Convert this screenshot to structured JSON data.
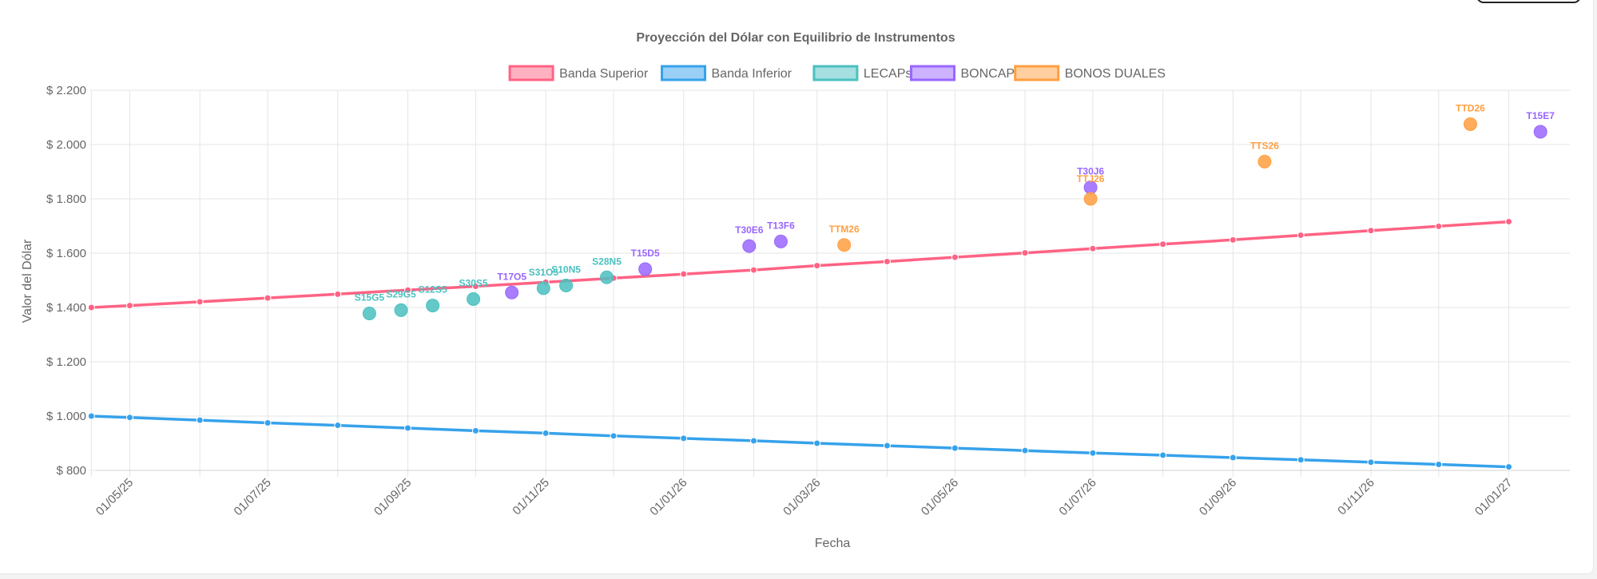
{
  "chart_data": {
    "type": "line",
    "title": "Proyección del Dólar con Equilibrio de Instrumentos",
    "xlabel": "Fecha",
    "ylabel": "Valor del Dólar",
    "grid": true,
    "legend_position": "top",
    "x_range": [
      "2025-04-16",
      "2027-01-28"
    ],
    "ylim": [
      800,
      2200
    ],
    "y_ticks": [
      {
        "value": 800,
        "label": "$ 800"
      },
      {
        "value": 1000,
        "label": "$ 1.000"
      },
      {
        "value": 1200,
        "label": "$ 1.200"
      },
      {
        "value": 1400,
        "label": "$ 1.400"
      },
      {
        "value": 1600,
        "label": "$ 1.600"
      },
      {
        "value": 1800,
        "label": "$ 1.800"
      },
      {
        "value": 2000,
        "label": "$ 2.000"
      },
      {
        "value": 2200,
        "label": "$ 2.200"
      }
    ],
    "x_ticks": [
      {
        "date": "2025-05-01",
        "label": "01/05/25"
      },
      {
        "date": "2025-07-01",
        "label": "01/07/25"
      },
      {
        "date": "2025-09-01",
        "label": "01/09/25"
      },
      {
        "date": "2025-11-01",
        "label": "01/11/25"
      },
      {
        "date": "2026-01-01",
        "label": "01/01/26"
      },
      {
        "date": "2026-03-01",
        "label": "01/03/26"
      },
      {
        "date": "2026-05-01",
        "label": "01/05/26"
      },
      {
        "date": "2026-07-01",
        "label": "01/07/26"
      },
      {
        "date": "2026-09-01",
        "label": "01/09/26"
      },
      {
        "date": "2026-11-01",
        "label": "01/11/26"
      },
      {
        "date": "2027-01-01",
        "label": "01/01/27"
      }
    ],
    "x_grid_dates": [
      "2025-04-14",
      "2025-05-01",
      "2025-06-01",
      "2025-07-01",
      "2025-08-01",
      "2025-09-01",
      "2025-10-01",
      "2025-11-01",
      "2025-12-01",
      "2026-01-01",
      "2026-02-01",
      "2026-03-01",
      "2026-04-01",
      "2026-05-01",
      "2026-06-01",
      "2026-07-01",
      "2026-08-01",
      "2026-09-01",
      "2026-10-01",
      "2026-11-01",
      "2026-12-01",
      "2027-01-01"
    ],
    "line_series": [
      {
        "name": "Banda Superior",
        "color": "#ff6384",
        "fill": "#ffb1c1",
        "points": [
          {
            "x": "2025-04-14",
            "y": 1400
          },
          {
            "x": "2025-05-01",
            "y": 1407
          },
          {
            "x": "2025-06-01",
            "y": 1421
          },
          {
            "x": "2025-07-01",
            "y": 1435
          },
          {
            "x": "2025-08-01",
            "y": 1449
          },
          {
            "x": "2025-09-01",
            "y": 1464
          },
          {
            "x": "2025-10-01",
            "y": 1478
          },
          {
            "x": "2025-11-01",
            "y": 1493
          },
          {
            "x": "2025-12-01",
            "y": 1508
          },
          {
            "x": "2026-01-01",
            "y": 1523
          },
          {
            "x": "2026-02-01",
            "y": 1538
          },
          {
            "x": "2026-03-01",
            "y": 1554
          },
          {
            "x": "2026-04-01",
            "y": 1569
          },
          {
            "x": "2026-05-01",
            "y": 1585
          },
          {
            "x": "2026-06-01",
            "y": 1601
          },
          {
            "x": "2026-07-01",
            "y": 1617
          },
          {
            "x": "2026-08-01",
            "y": 1633
          },
          {
            "x": "2026-09-01",
            "y": 1649
          },
          {
            "x": "2026-10-01",
            "y": 1666
          },
          {
            "x": "2026-11-01",
            "y": 1683
          },
          {
            "x": "2026-12-01",
            "y": 1699
          },
          {
            "x": "2027-01-01",
            "y": 1716
          }
        ]
      },
      {
        "name": "Banda Inferior",
        "color": "#36a2eb",
        "fill": "#9ad0f5",
        "points": [
          {
            "x": "2025-04-14",
            "y": 1000
          },
          {
            "x": "2025-05-01",
            "y": 995
          },
          {
            "x": "2025-06-01",
            "y": 985
          },
          {
            "x": "2025-07-01",
            "y": 975
          },
          {
            "x": "2025-08-01",
            "y": 966
          },
          {
            "x": "2025-09-01",
            "y": 956
          },
          {
            "x": "2025-10-01",
            "y": 946
          },
          {
            "x": "2025-11-01",
            "y": 937
          },
          {
            "x": "2025-12-01",
            "y": 927
          },
          {
            "x": "2026-01-01",
            "y": 918
          },
          {
            "x": "2026-02-01",
            "y": 909
          },
          {
            "x": "2026-03-01",
            "y": 900
          },
          {
            "x": "2026-04-01",
            "y": 891
          },
          {
            "x": "2026-05-01",
            "y": 882
          },
          {
            "x": "2026-06-01",
            "y": 873
          },
          {
            "x": "2026-07-01",
            "y": 864
          },
          {
            "x": "2026-08-01",
            "y": 856
          },
          {
            "x": "2026-09-01",
            "y": 847
          },
          {
            "x": "2026-10-01",
            "y": 839
          },
          {
            "x": "2026-11-01",
            "y": 830
          },
          {
            "x": "2026-12-01",
            "y": 822
          },
          {
            "x": "2027-01-01",
            "y": 813
          }
        ]
      }
    ],
    "scatter_series": [
      {
        "name": "LECAPs",
        "color": "#4bc0c0",
        "fill": "#a5dfdf",
        "points": [
          {
            "x": "2025-08-15",
            "y": 1378,
            "label": "S15G5"
          },
          {
            "x": "2025-08-29",
            "y": 1390,
            "label": "S29G5"
          },
          {
            "x": "2025-09-12",
            "y": 1407,
            "label": "S12S5"
          },
          {
            "x": "2025-09-30",
            "y": 1431,
            "label": "S30S5"
          },
          {
            "x": "2025-10-31",
            "y": 1471,
            "label": "S31O5"
          },
          {
            "x": "2025-11-10",
            "y": 1481,
            "label": "S10N5"
          },
          {
            "x": "2025-11-28",
            "y": 1511,
            "label": "S28N5"
          }
        ]
      },
      {
        "name": "BONCAPs",
        "color": "#9966ff",
        "fill": "#ccb2ff",
        "points": [
          {
            "x": "2025-10-17",
            "y": 1455,
            "label": "T17O5"
          },
          {
            "x": "2025-12-15",
            "y": 1541,
            "label": "T15D5"
          },
          {
            "x": "2026-01-30",
            "y": 1626,
            "label": "T30E6"
          },
          {
            "x": "2026-02-13",
            "y": 1643,
            "label": "T13F6"
          },
          {
            "x": "2026-06-30",
            "y": 1842,
            "label": "T30J6"
          },
          {
            "x": "2027-01-15",
            "y": 2047,
            "label": "T15E7"
          }
        ]
      },
      {
        "name": "BONOS DUALES",
        "color": "#ff9f40",
        "fill": "#ffcf9f",
        "points": [
          {
            "x": "2026-03-13",
            "y": 1630,
            "label": "TTM26"
          },
          {
            "x": "2026-06-30",
            "y": 1800,
            "label": "TTJ26"
          },
          {
            "x": "2026-09-15",
            "y": 1937,
            "label": "TTS26"
          },
          {
            "x": "2026-12-15",
            "y": 2075,
            "label": "TTD26"
          }
        ]
      }
    ],
    "legend": [
      {
        "name": "Banda Superior",
        "color": "#ff6384",
        "fill": "#ffb1c1"
      },
      {
        "name": "Banda Inferior",
        "color": "#36a2eb",
        "fill": "#9ad0f5"
      },
      {
        "name": "LECAPs",
        "color": "#4bc0c0",
        "fill": "#a5dfdf"
      },
      {
        "name": "BONCAPs",
        "color": "#9966ff",
        "fill": "#ccb2ff"
      },
      {
        "name": "BONOS DUALES",
        "color": "#ff9f40",
        "fill": "#ffcf9f"
      }
    ]
  }
}
